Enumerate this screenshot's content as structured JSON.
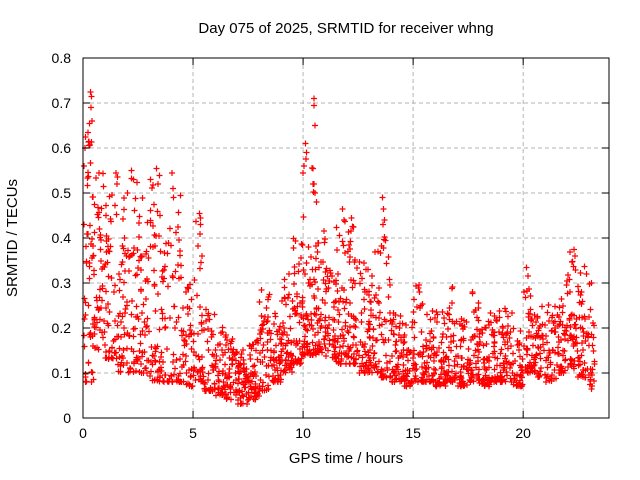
{
  "chart_data": {
    "type": "scatter",
    "title": "Day 075 of 2025, SRMTID for receiver whng",
    "xlabel": "GPS time / hours",
    "ylabel": "SRMTID / TECUs",
    "xlim": [
      0,
      23.9
    ],
    "ylim": [
      0,
      0.8
    ],
    "x_ticks": [
      0,
      5,
      10,
      15,
      20
    ],
    "x_tick_labels": [
      "0",
      "5",
      "10",
      "15",
      "20"
    ],
    "y_ticks": [
      0,
      0.1,
      0.2,
      0.3,
      0.4,
      0.5,
      0.6,
      0.7,
      0.8
    ],
    "y_tick_labels": [
      "0",
      "0.1",
      "0.2",
      "0.3",
      "0.4",
      "0.5",
      "0.6",
      "0.7",
      "0.8"
    ],
    "grid": true,
    "legend": "none",
    "marker": {
      "symbol": "plus",
      "color": "#ff0000",
      "size": 7
    },
    "colors": {
      "marker": "#ff0000",
      "grid": "#b3b3b3",
      "axis": "#000000",
      "text": "#000000",
      "background": "#ffffff"
    },
    "seed": 2025075,
    "density_bins": [
      [
        0.0,
        0.5,
        0.08,
        0.62,
        50,
        1.3
      ],
      [
        0.5,
        1.0,
        0.15,
        0.55,
        50,
        1.3
      ],
      [
        1.0,
        1.5,
        0.13,
        0.5,
        45,
        1.6
      ],
      [
        1.5,
        2.0,
        0.1,
        0.54,
        45,
        1.8
      ],
      [
        2.0,
        2.5,
        0.1,
        0.55,
        45,
        1.8
      ],
      [
        2.5,
        3.0,
        0.1,
        0.5,
        45,
        1.8
      ],
      [
        3.0,
        3.5,
        0.08,
        0.55,
        45,
        1.8
      ],
      [
        3.5,
        4.0,
        0.08,
        0.5,
        40,
        2.0
      ],
      [
        4.0,
        4.5,
        0.08,
        0.54,
        40,
        2.2
      ],
      [
        4.5,
        5.0,
        0.07,
        0.3,
        40,
        1.8
      ],
      [
        5.0,
        5.5,
        0.08,
        0.45,
        40,
        2.2
      ],
      [
        5.5,
        6.0,
        0.06,
        0.25,
        40,
        1.8
      ],
      [
        6.0,
        6.5,
        0.05,
        0.22,
        45,
        1.8
      ],
      [
        6.5,
        7.0,
        0.04,
        0.18,
        45,
        1.6
      ],
      [
        7.0,
        7.5,
        0.03,
        0.16,
        50,
        1.6
      ],
      [
        7.5,
        8.0,
        0.04,
        0.18,
        50,
        1.6
      ],
      [
        8.0,
        8.5,
        0.06,
        0.28,
        45,
        2.0
      ],
      [
        8.5,
        9.0,
        0.08,
        0.24,
        45,
        1.8
      ],
      [
        9.0,
        9.5,
        0.1,
        0.32,
        50,
        1.8
      ],
      [
        9.5,
        10.0,
        0.12,
        0.4,
        50,
        1.9
      ],
      [
        10.0,
        10.5,
        0.14,
        0.6,
        55,
        2.4
      ],
      [
        10.5,
        11.0,
        0.14,
        0.42,
        50,
        1.8
      ],
      [
        11.0,
        11.5,
        0.13,
        0.35,
        50,
        1.7
      ],
      [
        11.5,
        12.0,
        0.12,
        0.44,
        50,
        2.0
      ],
      [
        12.0,
        12.5,
        0.12,
        0.44,
        50,
        2.0
      ],
      [
        12.5,
        13.0,
        0.1,
        0.36,
        45,
        1.8
      ],
      [
        13.0,
        13.5,
        0.1,
        0.4,
        45,
        2.0
      ],
      [
        13.5,
        14.0,
        0.09,
        0.48,
        45,
        2.4
      ],
      [
        14.0,
        14.5,
        0.08,
        0.24,
        45,
        1.7
      ],
      [
        14.5,
        15.0,
        0.07,
        0.22,
        45,
        1.7
      ],
      [
        15.0,
        15.5,
        0.08,
        0.3,
        45,
        1.9
      ],
      [
        15.5,
        16.0,
        0.08,
        0.24,
        45,
        1.7
      ],
      [
        16.0,
        16.5,
        0.07,
        0.24,
        45,
        1.7
      ],
      [
        16.5,
        17.0,
        0.08,
        0.3,
        45,
        1.9
      ],
      [
        17.0,
        17.5,
        0.07,
        0.22,
        45,
        1.7
      ],
      [
        17.5,
        18.0,
        0.08,
        0.28,
        45,
        1.9
      ],
      [
        18.0,
        18.5,
        0.07,
        0.22,
        45,
        1.7
      ],
      [
        18.5,
        19.0,
        0.08,
        0.24,
        45,
        1.7
      ],
      [
        19.0,
        19.5,
        0.08,
        0.26,
        45,
        1.8
      ],
      [
        19.5,
        20.0,
        0.07,
        0.2,
        40,
        1.6
      ],
      [
        20.0,
        20.5,
        0.1,
        0.32,
        45,
        1.9
      ],
      [
        20.5,
        21.0,
        0.09,
        0.25,
        40,
        1.7
      ],
      [
        21.0,
        21.5,
        0.08,
        0.26,
        40,
        1.8
      ],
      [
        21.5,
        22.0,
        0.1,
        0.3,
        45,
        1.8
      ],
      [
        22.0,
        22.5,
        0.11,
        0.37,
        50,
        1.7
      ],
      [
        22.5,
        23.0,
        0.09,
        0.34,
        45,
        1.8
      ],
      [
        23.0,
        23.25,
        0.06,
        0.3,
        20,
        1.8
      ]
    ],
    "outlier_points": [
      [
        0.33,
        0.725
      ],
      [
        0.38,
        0.715
      ],
      [
        0.36,
        0.69
      ],
      [
        0.42,
        0.66
      ],
      [
        0.3,
        0.655
      ],
      [
        0.22,
        0.635
      ],
      [
        0.12,
        0.625
      ],
      [
        0.27,
        0.615
      ],
      [
        0.08,
        0.6
      ],
      [
        0.05,
        0.56
      ],
      [
        1.5,
        0.545
      ],
      [
        1.55,
        0.52
      ],
      [
        2.2,
        0.55
      ],
      [
        2.3,
        0.53
      ],
      [
        3.35,
        0.555
      ],
      [
        3.4,
        0.52
      ],
      [
        4.05,
        0.545
      ],
      [
        4.1,
        0.51
      ],
      [
        5.3,
        0.455
      ],
      [
        5.35,
        0.43
      ],
      [
        8.1,
        0.285
      ],
      [
        10.5,
        0.71
      ],
      [
        10.5,
        0.695
      ],
      [
        10.55,
        0.65
      ],
      [
        10.1,
        0.61
      ],
      [
        10.15,
        0.59
      ],
      [
        10.0,
        0.545
      ],
      [
        10.05,
        0.56
      ],
      [
        10.45,
        0.555
      ],
      [
        10.5,
        0.52
      ],
      [
        10.55,
        0.5
      ],
      [
        10.6,
        0.48
      ],
      [
        11.8,
        0.465
      ],
      [
        11.85,
        0.44
      ],
      [
        12.2,
        0.445
      ],
      [
        13.6,
        0.49
      ],
      [
        13.65,
        0.465
      ],
      [
        13.7,
        0.44
      ],
      [
        20.15,
        0.335
      ],
      [
        22.3,
        0.375
      ],
      [
        22.35,
        0.36
      ],
      [
        23.1,
        0.3
      ]
    ]
  }
}
